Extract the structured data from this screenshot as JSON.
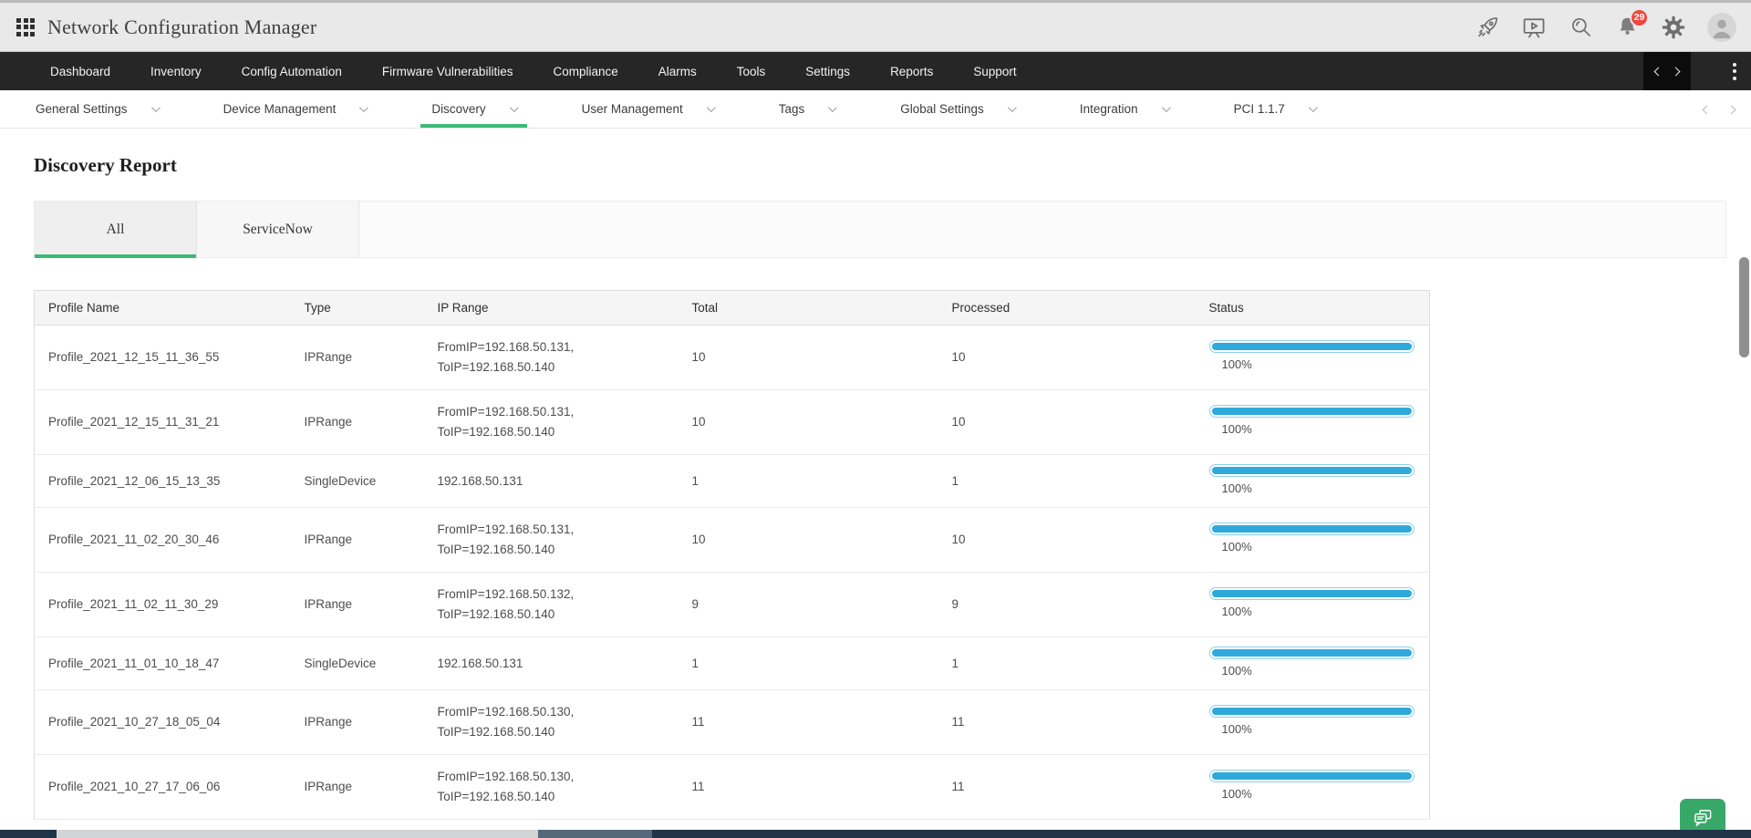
{
  "header": {
    "title": "Network Configuration Manager",
    "notification_count": "29",
    "icons": [
      "apps-grid",
      "rocket",
      "demo-screen",
      "search",
      "notification-bell",
      "settings-gear",
      "user-avatar"
    ]
  },
  "main_nav": {
    "items": [
      "Dashboard",
      "Inventory",
      "Config Automation",
      "Firmware Vulnerabilities",
      "Compliance",
      "Alarms",
      "Tools",
      "Settings",
      "Reports",
      "Support"
    ]
  },
  "sub_nav": {
    "items": [
      {
        "label": "General Settings",
        "active": false
      },
      {
        "label": "Device Management",
        "active": false
      },
      {
        "label": "Discovery",
        "active": true
      },
      {
        "label": "User Management",
        "active": false
      },
      {
        "label": "Tags",
        "active": false
      },
      {
        "label": "Global Settings",
        "active": false
      },
      {
        "label": "Integration",
        "active": false
      },
      {
        "label": "PCI 1.1.7",
        "active": false
      }
    ]
  },
  "page": {
    "title": "Discovery Report"
  },
  "tabs": [
    {
      "label": "All",
      "active": true
    },
    {
      "label": "ServiceNow",
      "active": false
    }
  ],
  "table": {
    "columns": [
      "Profile Name",
      "Type",
      "IP Range",
      "Total",
      "Processed",
      "Status"
    ],
    "rows": [
      {
        "profile": "Profile_2021_12_15_11_36_55",
        "type": "IPRange",
        "ip_line1": "FromIP=192.168.50.131,",
        "ip_line2": "ToIP=192.168.50.140",
        "total": "10",
        "processed": "10",
        "progress_pct": 100,
        "progress_label": "100%"
      },
      {
        "profile": "Profile_2021_12_15_11_31_21",
        "type": "IPRange",
        "ip_line1": "FromIP=192.168.50.131,",
        "ip_line2": "ToIP=192.168.50.140",
        "total": "10",
        "processed": "10",
        "progress_pct": 100,
        "progress_label": "100%"
      },
      {
        "profile": "Profile_2021_12_06_15_13_35",
        "type": "SingleDevice",
        "ip_line1": "192.168.50.131",
        "ip_line2": "",
        "total": "1",
        "processed": "1",
        "progress_pct": 100,
        "progress_label": "100%"
      },
      {
        "profile": "Profile_2021_11_02_20_30_46",
        "type": "IPRange",
        "ip_line1": "FromIP=192.168.50.131,",
        "ip_line2": "ToIP=192.168.50.140",
        "total": "10",
        "processed": "10",
        "progress_pct": 100,
        "progress_label": "100%"
      },
      {
        "profile": "Profile_2021_11_02_11_30_29",
        "type": "IPRange",
        "ip_line1": "FromIP=192.168.50.132,",
        "ip_line2": "ToIP=192.168.50.140",
        "total": "9",
        "processed": "9",
        "progress_pct": 100,
        "progress_label": "100%"
      },
      {
        "profile": "Profile_2021_11_01_10_18_47",
        "type": "SingleDevice",
        "ip_line1": "192.168.50.131",
        "ip_line2": "",
        "total": "1",
        "processed": "1",
        "progress_pct": 100,
        "progress_label": "100%"
      },
      {
        "profile": "Profile_2021_10_27_18_05_04",
        "type": "IPRange",
        "ip_line1": "FromIP=192.168.50.130,",
        "ip_line2": "ToIP=192.168.50.140",
        "total": "11",
        "processed": "11",
        "progress_pct": 100,
        "progress_label": "100%"
      },
      {
        "profile": "Profile_2021_10_27_17_06_06",
        "type": "IPRange",
        "ip_line1": "FromIP=192.168.50.130,",
        "ip_line2": "ToIP=192.168.50.140",
        "total": "11",
        "processed": "11",
        "progress_pct": 100,
        "progress_label": "100%"
      }
    ]
  },
  "colors": {
    "accent_green": "#3cb878",
    "progress_fill": "#2fa9dc",
    "progress_border": "#8ed0ec",
    "badge_red": "#f0483e",
    "nav_dark": "#262626",
    "footer_navy": "#203447",
    "chat_button_green": "#38a869"
  }
}
